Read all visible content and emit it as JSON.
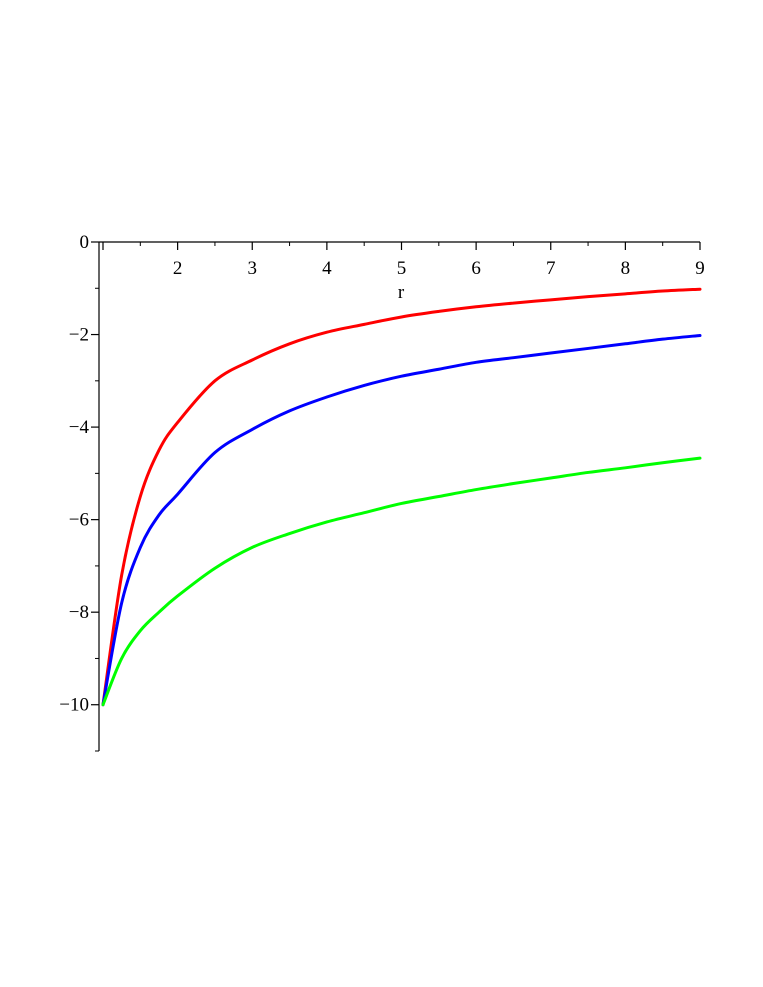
{
  "chart_data": {
    "type": "line",
    "title": "",
    "xlabel": "r",
    "ylabel": "",
    "xlim": [
      1,
      9
    ],
    "ylim": [
      -11,
      0
    ],
    "x_ticks": [
      2,
      3,
      4,
      5,
      6,
      7,
      8,
      9
    ],
    "x_tick_labels": [
      "2",
      "3",
      "4",
      "5",
      "6",
      "7",
      "8",
      "9"
    ],
    "y_ticks": [
      0,
      -2,
      -4,
      -6,
      -8,
      -10
    ],
    "y_tick_labels": [
      "0",
      "−2",
      "−4",
      "−6",
      "−8",
      "−10"
    ],
    "grid": false,
    "legend": "none",
    "series": [
      {
        "color": "#ff0000",
        "x": [
          1,
          1.25,
          1.5,
          1.75,
          2,
          2.5,
          3,
          3.5,
          4,
          4.5,
          5,
          5.5,
          6,
          6.5,
          7,
          7.5,
          8,
          8.5,
          9
        ],
        "y": [
          -10,
          -7.2,
          -5.5,
          -4.5,
          -3.9,
          -3.0,
          -2.55,
          -2.2,
          -1.95,
          -1.78,
          -1.62,
          -1.5,
          -1.4,
          -1.32,
          -1.25,
          -1.18,
          -1.12,
          -1.06,
          -1.02
        ]
      },
      {
        "color": "#0000ff",
        "x": [
          1,
          1.25,
          1.5,
          1.75,
          2,
          2.5,
          3,
          3.5,
          4,
          4.5,
          5,
          5.5,
          6,
          6.5,
          7,
          7.5,
          8,
          8.5,
          9
        ],
        "y": [
          -10,
          -7.8,
          -6.6,
          -5.9,
          -5.45,
          -4.55,
          -4.05,
          -3.65,
          -3.35,
          -3.1,
          -2.9,
          -2.75,
          -2.6,
          -2.5,
          -2.4,
          -2.3,
          -2.2,
          -2.1,
          -2.02
        ]
      },
      {
        "color": "#00ff00",
        "x": [
          1,
          1.25,
          1.5,
          1.75,
          2,
          2.5,
          3,
          3.5,
          4,
          4.5,
          5,
          5.5,
          6,
          6.5,
          7,
          7.5,
          8,
          8.5,
          9
        ],
        "y": [
          -10,
          -9.0,
          -8.4,
          -8.0,
          -7.65,
          -7.05,
          -6.6,
          -6.3,
          -6.05,
          -5.85,
          -5.65,
          -5.5,
          -5.35,
          -5.22,
          -5.1,
          -4.98,
          -4.88,
          -4.77,
          -4.67
        ]
      }
    ]
  }
}
